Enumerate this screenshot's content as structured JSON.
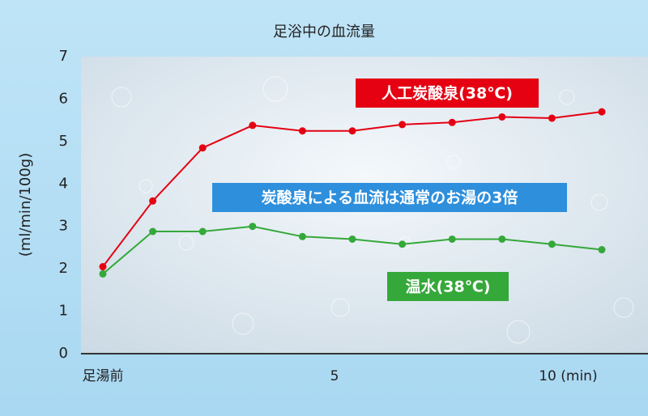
{
  "chart_data": {
    "type": "line",
    "title": "足浴中の血流量",
    "y_label": "(ml/min/100g)",
    "annotation": "炭酸泉による血流は通常のお湯の3倍",
    "categories": [
      "足湯前",
      null,
      null,
      null,
      null,
      "5",
      null,
      null,
      null,
      "10 (min)",
      null
    ],
    "series": [
      {
        "name": "人工炭酸泉(38℃)",
        "color": "#e50012",
        "values": [
          2.05,
          3.6,
          4.85,
          5.38,
          5.25,
          5.25,
          5.4,
          5.45,
          5.58,
          5.55,
          5.7
        ]
      },
      {
        "name": "温水(38℃)",
        "color": "#35a83a",
        "values": [
          1.88,
          2.88,
          2.88,
          3.0,
          2.76,
          2.7,
          2.58,
          2.7,
          2.7,
          2.58,
          2.45
        ]
      }
    ],
    "ylim": [
      0,
      7
    ],
    "yticks": [
      0,
      1,
      2,
      3,
      4,
      5,
      6,
      7
    ]
  }
}
